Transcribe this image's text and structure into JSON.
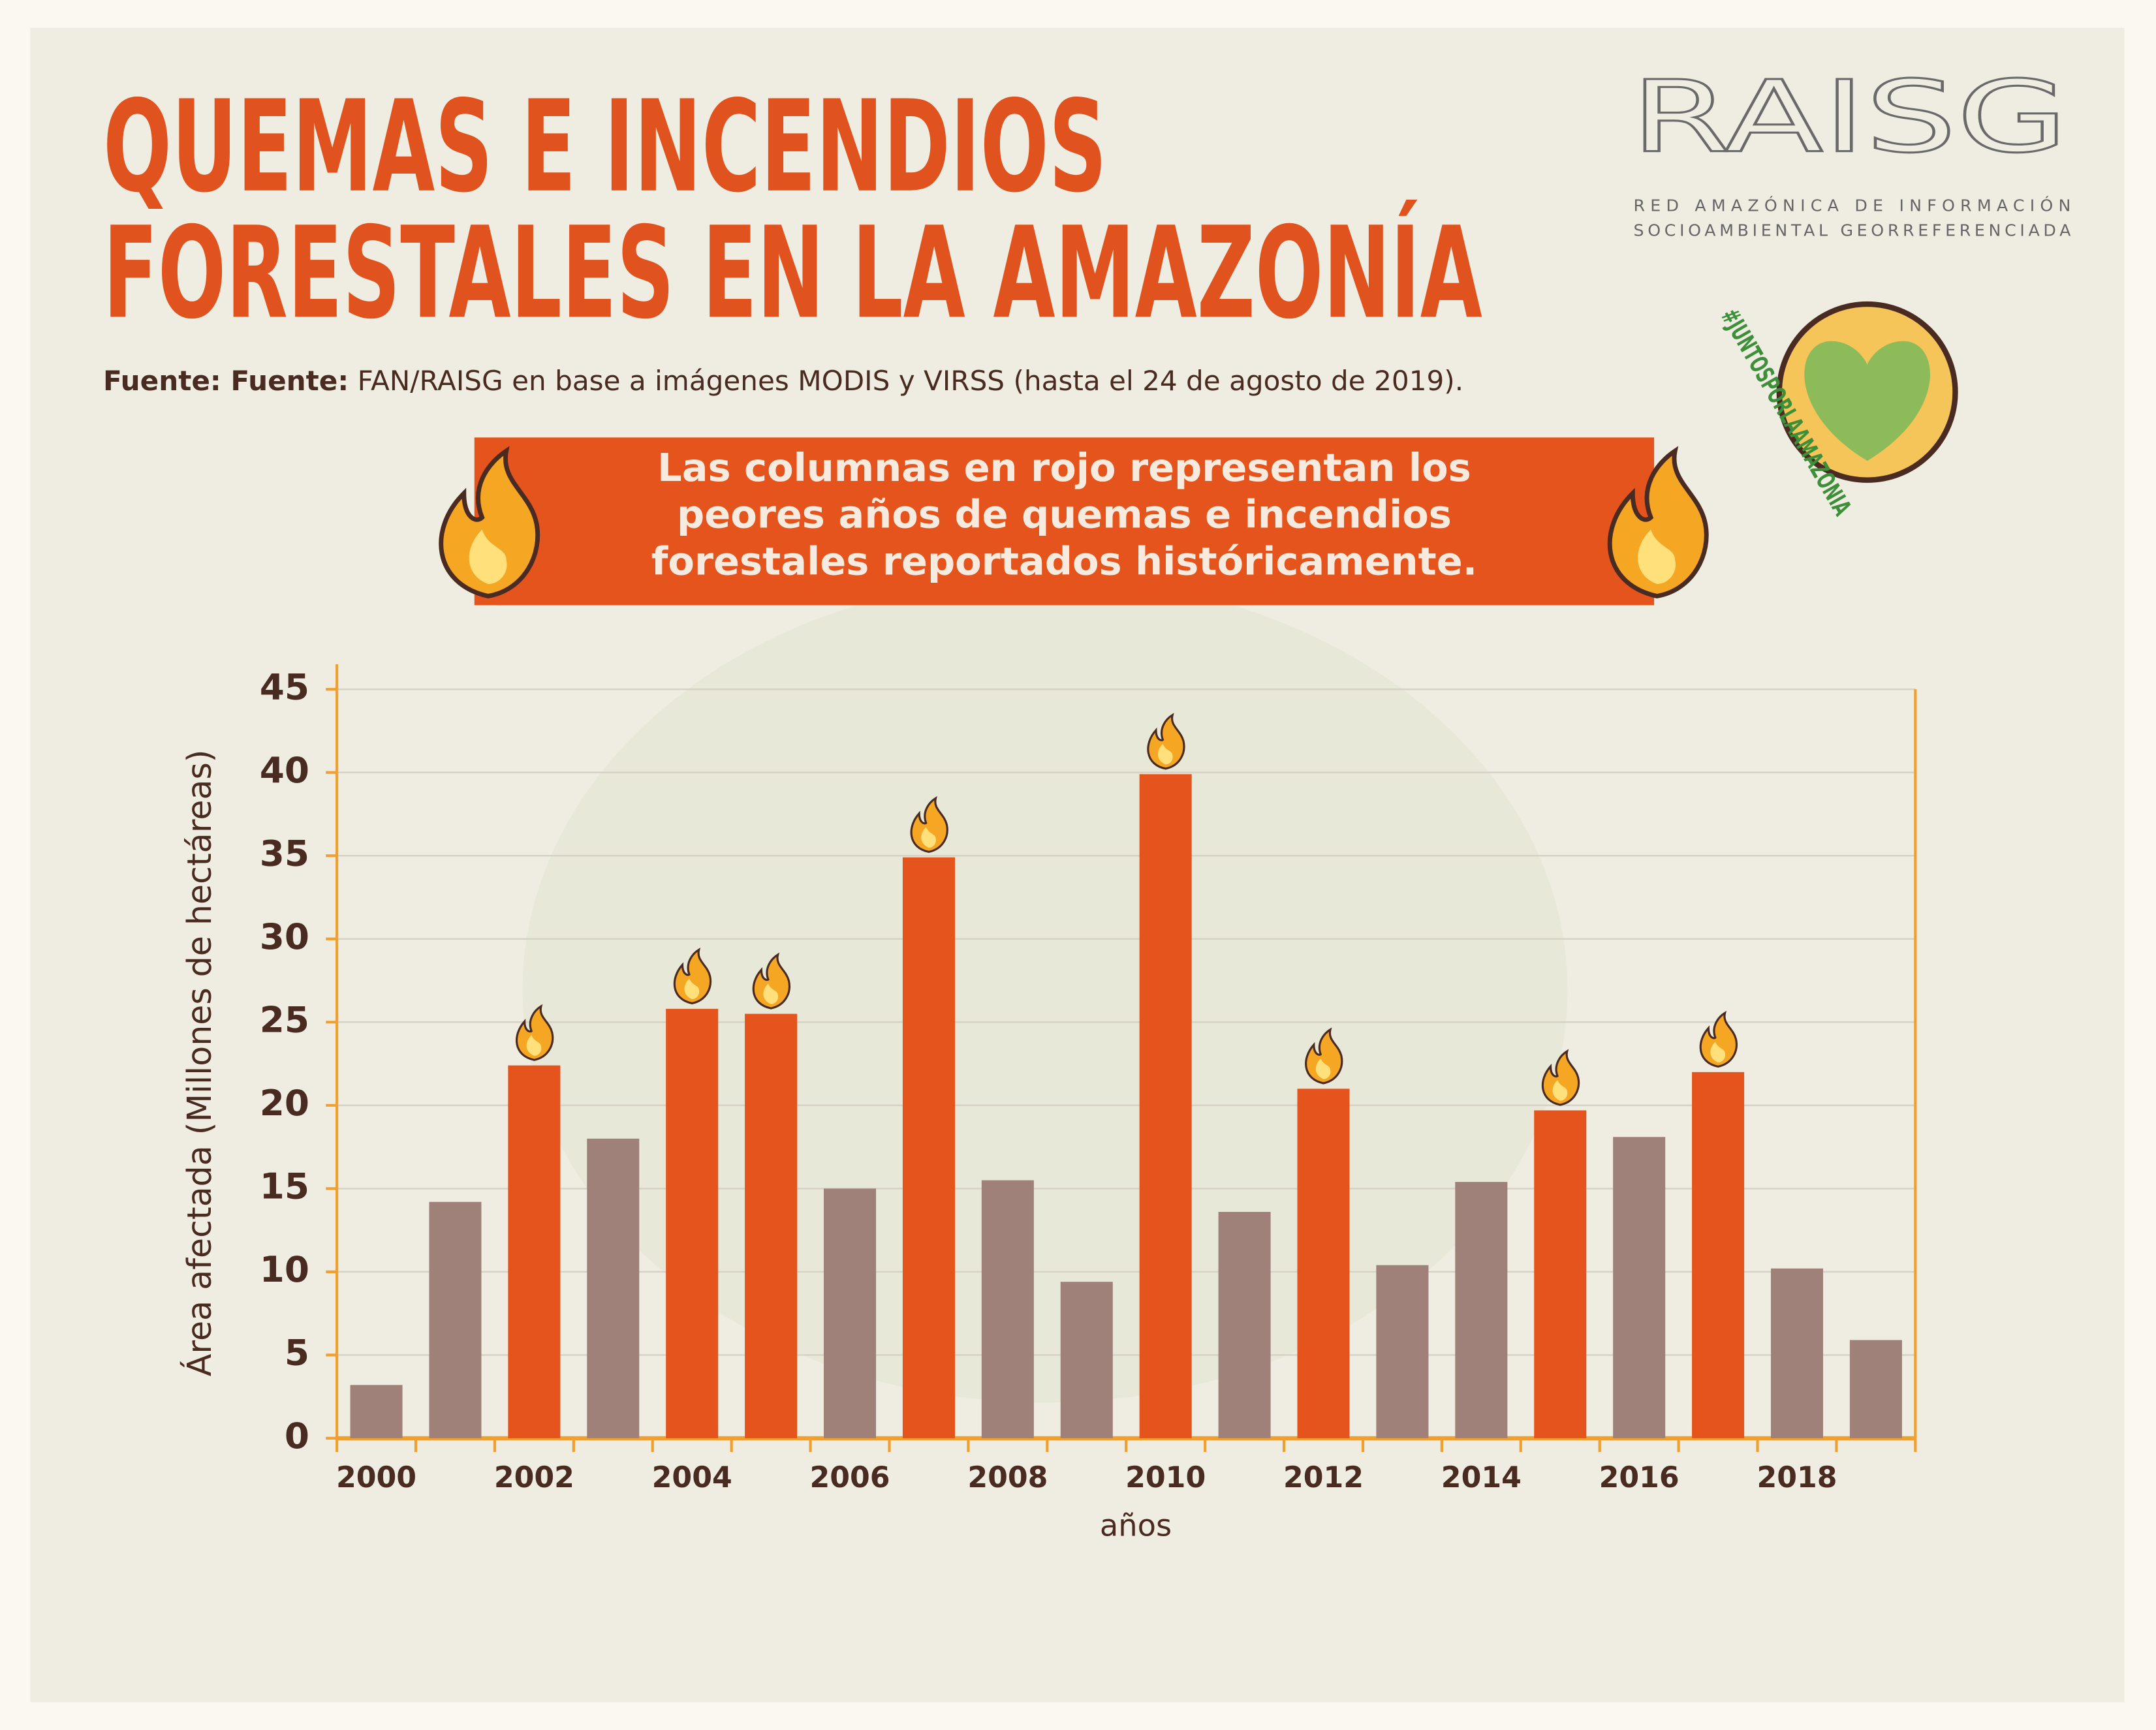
{
  "header": {
    "title": [
      "QUEMAS E INCENDIOS",
      "FORESTALES EN LA AMAZONÍA"
    ],
    "source_label": "Fuente: Fuente:",
    "source_text": "FAN/RAISG en base a imágenes MODIS y VIRSS (hasta el 24 de agosto de 2019).",
    "logo": "RAISG",
    "logo_lines": [
      "RED AMAZÓNICA DE INFORMACIÓN",
      "SOCIOAMBIENTAL GEORREFERENCIADA"
    ],
    "hashtag": "#JUNTOSPORLAAMAZONIA",
    "banner": [
      "Las columnas en rojo representan los",
      "peores años de quemas e incendios",
      "forestales reportados históricamente."
    ]
  },
  "chart_data": {
    "type": "bar",
    "categories": [
      "2000",
      null,
      "2002",
      null,
      "2004",
      null,
      "2006",
      null,
      "2008",
      null,
      "2010",
      null,
      "2012",
      null,
      "2014",
      null,
      "2016",
      null,
      "2018",
      null
    ],
    "values": [
      3.2,
      14.2,
      22.4,
      18.0,
      25.8,
      25.5,
      15.0,
      34.9,
      15.5,
      9.4,
      39.9,
      13.6,
      21.0,
      10.4,
      15.4,
      19.7,
      18.1,
      22.0,
      10.2,
      5.9
    ],
    "colors": [
      "#a0817a",
      "#a0817a",
      "#e5541c",
      "#a0817a",
      "#e5541c",
      "#e5541c",
      "#a0817a",
      "#e5541c",
      "#a0817a",
      "#a0817a",
      "#e5541c",
      "#a0817a",
      "#e5541c",
      "#a0817a",
      "#a0817a",
      "#e5541c",
      "#a0817a",
      "#e5541c",
      "#a0817a",
      "#a0817a"
    ],
    "highlight_color": "#e5541c",
    "xlabel": "años",
    "ylabel": "Área afectada (Millones de hectáreas)",
    "ylim": [
      0,
      46.5
    ],
    "yticks": [
      0,
      5,
      10,
      15,
      20,
      25,
      30,
      35,
      40,
      45
    ],
    "grid": true
  }
}
